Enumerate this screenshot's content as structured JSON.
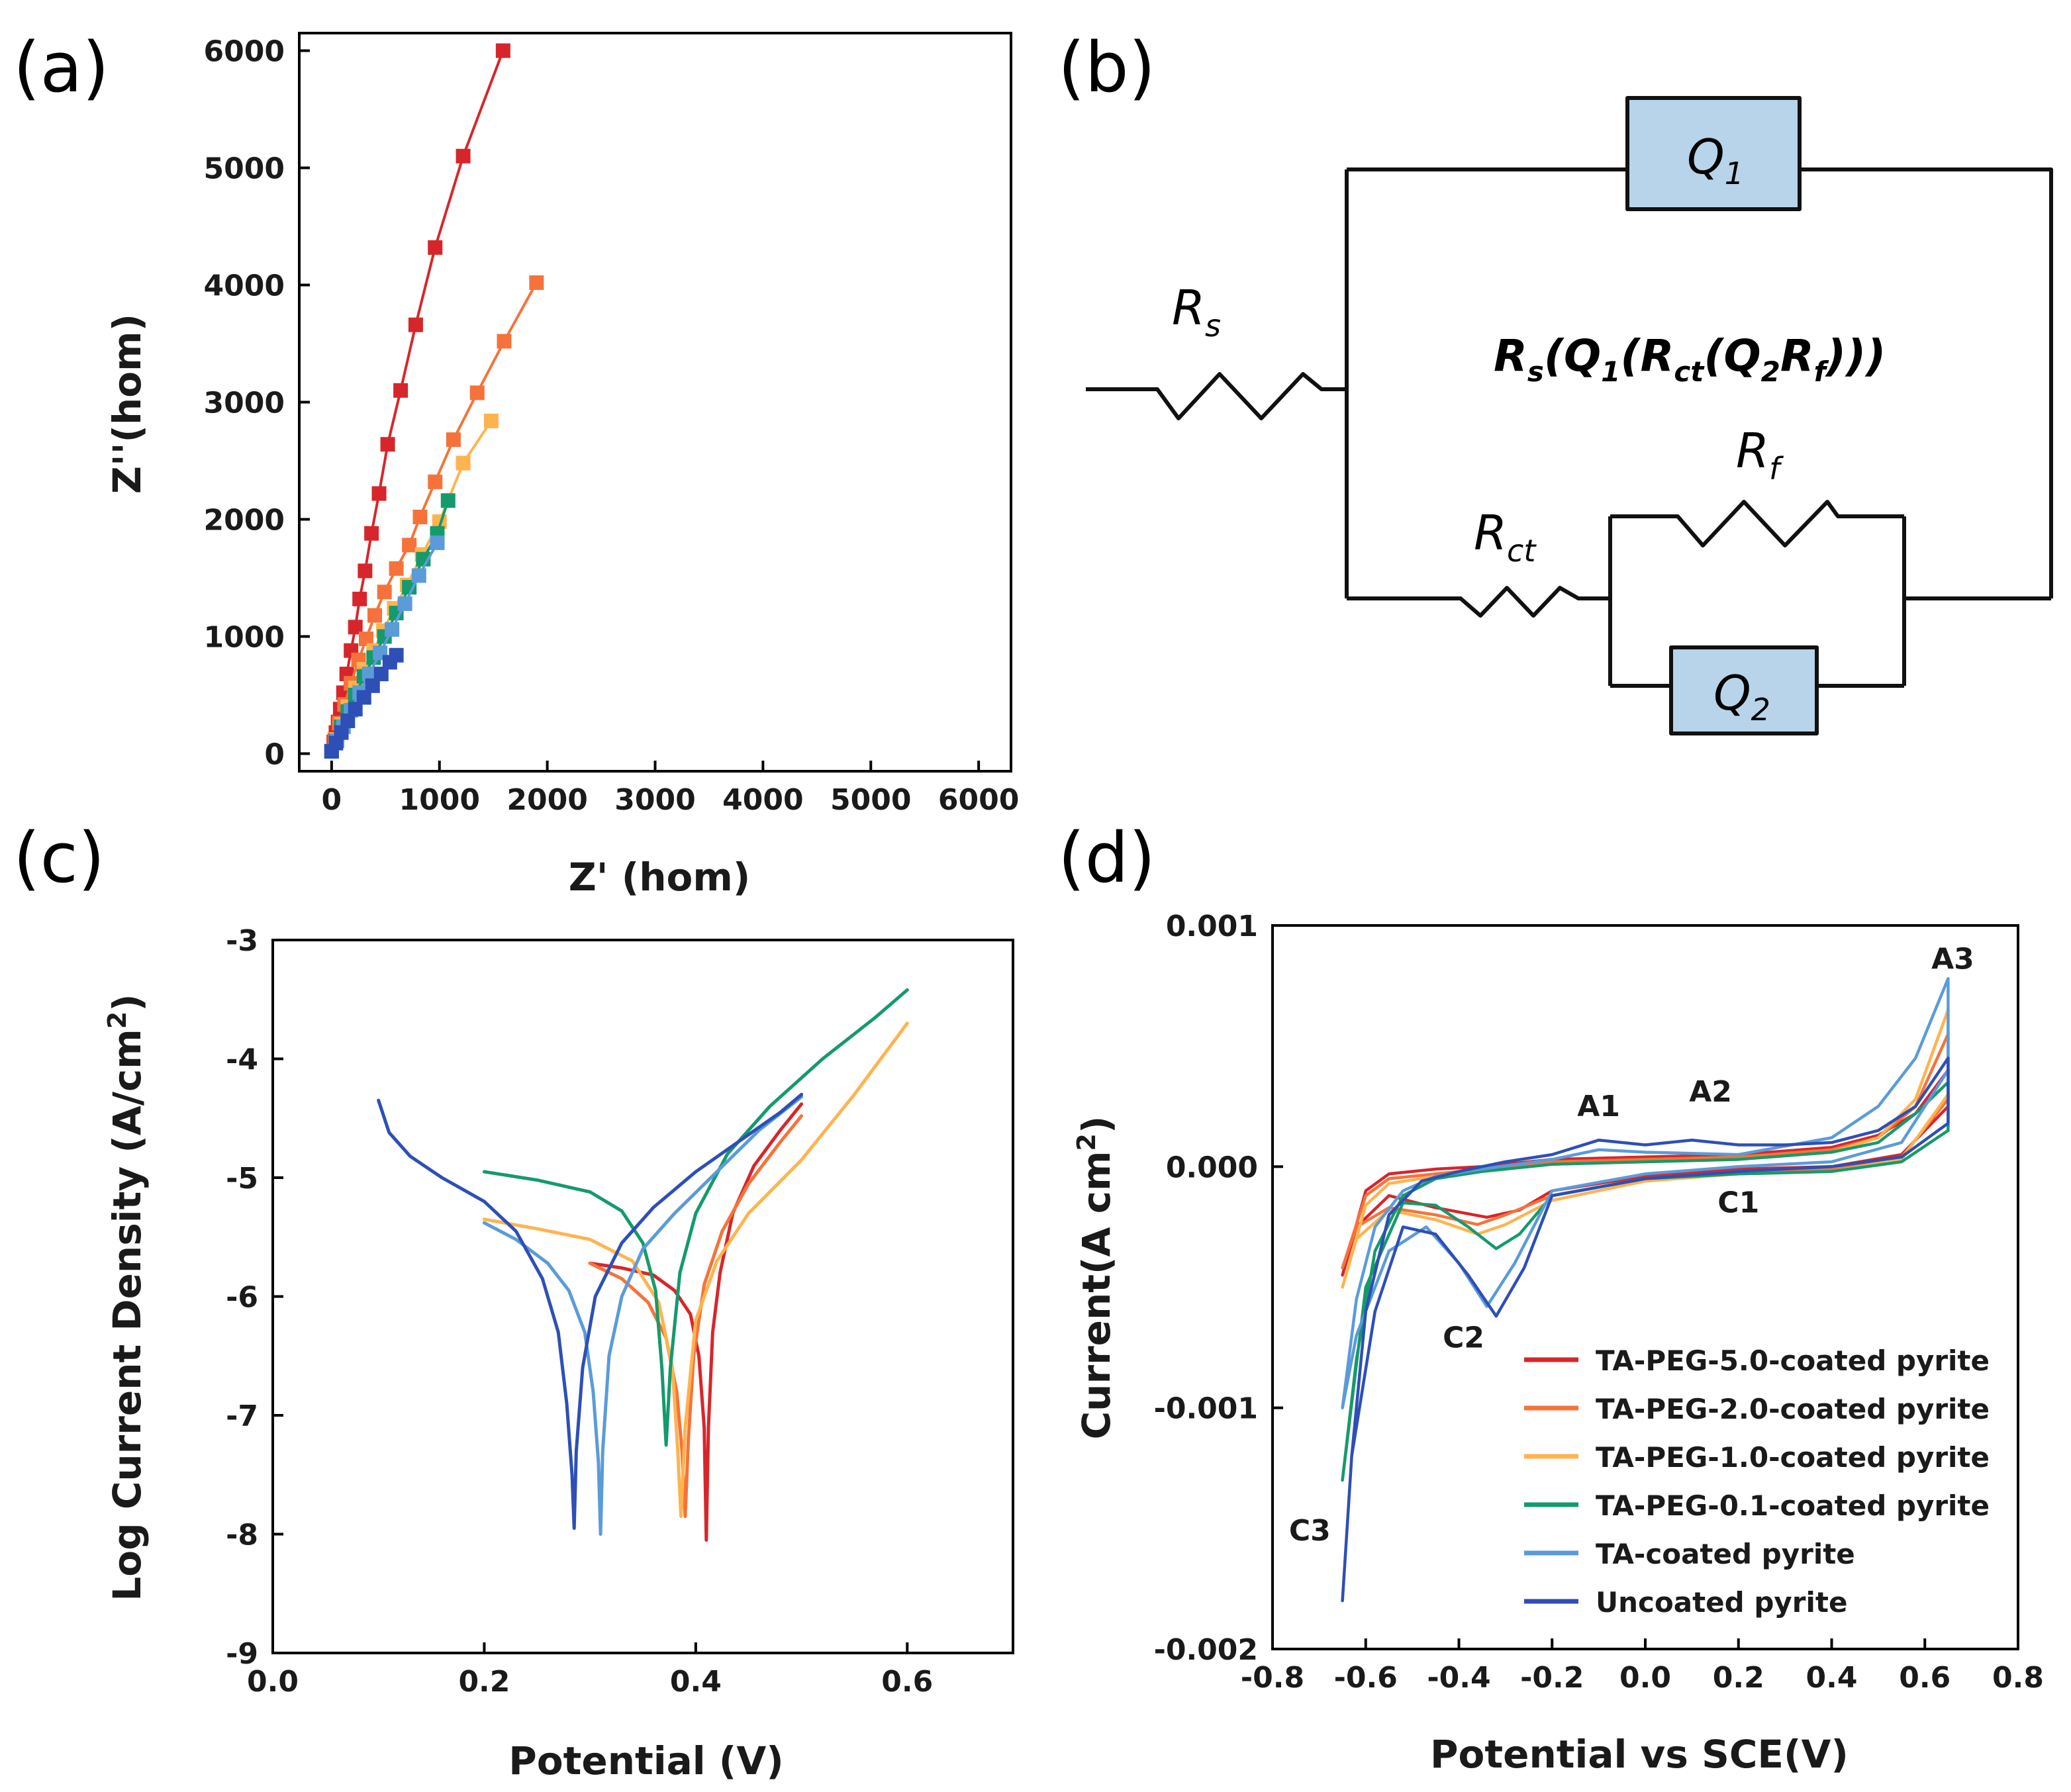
{
  "panels": {
    "a": "(a)",
    "b": "(b)",
    "c": "(c)",
    "d": "(d)"
  },
  "colors": {
    "red": "#d7262b",
    "orange": "#f5733a",
    "light_orange": "#ffb34f",
    "green": "#159a6b",
    "light_blue": "#5b9bd9",
    "blue": "#2e4fb5",
    "box_fill": "#b7d4ea"
  },
  "chart_data": [
    {
      "id": "nyquist",
      "type": "scatter",
      "xlabel": "Z' (hom)",
      "ylabel": "Z''(hom)",
      "xlim": [
        -300,
        6300
      ],
      "ylim": [
        -150,
        6150
      ],
      "xticks": [
        0,
        1000,
        2000,
        3000,
        4000,
        5000,
        6000
      ],
      "yticks": [
        0,
        1000,
        2000,
        3000,
        4000,
        5000,
        6000
      ],
      "series": [
        {
          "name": "TA-PEG-5.0-coated pyrite",
          "color": "#d7262b",
          "x": [
            0,
            20,
            40,
            60,
            80,
            110,
            140,
            180,
            220,
            260,
            310,
            370,
            440,
            520,
            640,
            780,
            960,
            1220,
            1590
          ],
          "y": [
            20,
            100,
            180,
            270,
            380,
            520,
            680,
            880,
            1080,
            1320,
            1560,
            1880,
            2220,
            2640,
            3100,
            3660,
            4320,
            5100,
            6000
          ]
        },
        {
          "name": "TA-PEG-2.0-coated pyrite",
          "color": "#f5733a",
          "x": [
            0,
            30,
            70,
            120,
            180,
            250,
            320,
            400,
            490,
            600,
            720,
            820,
            960,
            1130,
            1350,
            1600,
            1900
          ],
          "y": [
            20,
            120,
            260,
            420,
            600,
            800,
            980,
            1180,
            1380,
            1580,
            1780,
            2020,
            2320,
            2680,
            3080,
            3520,
            4020
          ]
        },
        {
          "name": "TA-PEG-1.0-coated pyrite",
          "color": "#ffb34f",
          "x": [
            0,
            40,
            90,
            150,
            220,
            300,
            390,
            480,
            580,
            700,
            840,
            1000,
            1220,
            1480
          ],
          "y": [
            20,
            120,
            250,
            400,
            560,
            720,
            880,
            1050,
            1240,
            1440,
            1700,
            1980,
            2480,
            2840
          ]
        },
        {
          "name": "TA-PEG-0.1-coated pyrite",
          "color": "#159a6b",
          "x": [
            0,
            40,
            90,
            150,
            220,
            300,
            390,
            490,
            600,
            720,
            850,
            980,
            1080
          ],
          "y": [
            20,
            110,
            230,
            360,
            500,
            660,
            820,
            1000,
            1200,
            1420,
            1660,
            1880,
            2160
          ]
        },
        {
          "name": "TA-coated pyrite",
          "color": "#5b9bd9",
          "x": [
            0,
            50,
            110,
            180,
            260,
            350,
            450,
            560,
            680,
            810,
            980
          ],
          "y": [
            20,
            110,
            230,
            370,
            520,
            680,
            860,
            1060,
            1280,
            1520,
            1800
          ]
        },
        {
          "name": "Uncoated pyrite",
          "color": "#2e4fb5",
          "x": [
            0,
            40,
            90,
            150,
            220,
            300,
            380,
            460,
            540,
            600
          ],
          "y": [
            20,
            90,
            180,
            280,
            380,
            480,
            580,
            680,
            780,
            840
          ]
        }
      ]
    },
    {
      "id": "tafel",
      "type": "line",
      "xlabel": "Potential (V)",
      "ylabel": "Log Current Density (A/cm",
      "ylabel_sup": "2",
      "ylabel_end": ")",
      "xlim": [
        0,
        0.7
      ],
      "ylim": [
        -9,
        -3
      ],
      "xticks": [
        0.0,
        0.2,
        0.4,
        0.6
      ],
      "xtick_labels": [
        "0.0",
        "0.2",
        "0.4",
        "0.6"
      ],
      "yticks": [
        -3,
        -4,
        -5,
        -6,
        -7,
        -8,
        -9
      ],
      "ytick_labels": [
        "-3",
        "-4",
        "-5",
        "-6",
        "-7",
        "-8",
        "-9"
      ],
      "series": [
        {
          "name": "TA-PEG-5.0-coated pyrite",
          "color": "#d7262b",
          "ecorr": 0.41,
          "x": [
            0.3,
            0.33,
            0.36,
            0.38,
            0.395,
            0.403,
            0.408,
            0.41,
            0.412,
            0.416,
            0.423,
            0.435,
            0.455,
            0.48,
            0.5
          ],
          "y": [
            -5.72,
            -5.76,
            -5.82,
            -5.95,
            -6.15,
            -6.5,
            -7.1,
            -8.05,
            -7.1,
            -6.3,
            -5.8,
            -5.3,
            -4.9,
            -4.6,
            -4.38
          ]
        },
        {
          "name": "TA-PEG-2.0-coated pyrite",
          "color": "#f5733a",
          "ecorr": 0.39,
          "x": [
            0.3,
            0.33,
            0.355,
            0.372,
            0.382,
            0.387,
            0.39,
            0.393,
            0.398,
            0.408,
            0.425,
            0.45,
            0.48,
            0.5
          ],
          "y": [
            -5.72,
            -5.85,
            -6.05,
            -6.35,
            -6.8,
            -7.3,
            -7.85,
            -7.2,
            -6.5,
            -5.9,
            -5.45,
            -5.05,
            -4.7,
            -4.48
          ]
        },
        {
          "name": "TA-PEG-1.0-coated pyrite",
          "color": "#ffb34f",
          "ecorr": 0.385,
          "x": [
            0.2,
            0.25,
            0.3,
            0.34,
            0.365,
            0.378,
            0.383,
            0.386,
            0.39,
            0.4,
            0.42,
            0.45,
            0.5,
            0.55,
            0.6
          ],
          "y": [
            -5.35,
            -5.43,
            -5.52,
            -5.7,
            -6.05,
            -6.6,
            -7.3,
            -7.85,
            -7.1,
            -6.2,
            -5.7,
            -5.3,
            -4.85,
            -4.3,
            -3.7
          ]
        },
        {
          "name": "TA-PEG-0.1-coated pyrite",
          "color": "#159a6b",
          "ecorr": 0.372,
          "x": [
            0.2,
            0.25,
            0.3,
            0.33,
            0.35,
            0.362,
            0.368,
            0.372,
            0.376,
            0.385,
            0.4,
            0.43,
            0.47,
            0.52,
            0.57,
            0.6
          ],
          "y": [
            -4.95,
            -5.02,
            -5.12,
            -5.28,
            -5.55,
            -5.95,
            -6.6,
            -7.25,
            -6.6,
            -5.8,
            -5.3,
            -4.8,
            -4.4,
            -4.0,
            -3.65,
            -3.42
          ]
        },
        {
          "name": "TA-coated pyrite",
          "color": "#5b9bd9",
          "ecorr": 0.31,
          "x": [
            0.2,
            0.23,
            0.26,
            0.28,
            0.295,
            0.303,
            0.308,
            0.31,
            0.312,
            0.318,
            0.33,
            0.35,
            0.38,
            0.42,
            0.46,
            0.5
          ],
          "y": [
            -5.38,
            -5.52,
            -5.72,
            -5.95,
            -6.3,
            -6.8,
            -7.4,
            -8.0,
            -7.3,
            -6.5,
            -6.0,
            -5.6,
            -5.3,
            -4.95,
            -4.6,
            -4.32
          ]
        },
        {
          "name": "Uncoated pyrite",
          "color": "#2e4fb5",
          "ecorr": 0.285,
          "x": [
            0.1,
            0.11,
            0.13,
            0.16,
            0.2,
            0.23,
            0.255,
            0.27,
            0.278,
            0.283,
            0.285,
            0.287,
            0.293,
            0.305,
            0.33,
            0.36,
            0.4,
            0.44,
            0.48,
            0.5
          ],
          "y": [
            -4.35,
            -4.62,
            -4.82,
            -5.0,
            -5.2,
            -5.45,
            -5.85,
            -6.3,
            -6.9,
            -7.5,
            -7.95,
            -7.3,
            -6.6,
            -6.0,
            -5.55,
            -5.25,
            -4.95,
            -4.7,
            -4.45,
            -4.3
          ]
        }
      ]
    },
    {
      "id": "cv",
      "type": "line",
      "xlabel": "Potential vs SCE(V)",
      "ylabel": "Current(A cm",
      "ylabel_sup": "2",
      "ylabel_end": ")",
      "xlim": [
        -0.8,
        0.8
      ],
      "ylim": [
        -0.002,
        0.001
      ],
      "xticks": [
        -0.8,
        -0.6,
        -0.4,
        -0.2,
        0.0,
        0.2,
        0.4,
        0.6,
        0.8
      ],
      "xtick_labels": [
        "-0.8",
        "-0.6",
        "-0.4",
        "-0.2",
        "0.0",
        "0.2",
        "0.4",
        "0.6",
        "0.8"
      ],
      "yticks": [
        0.001,
        0.0,
        -0.001,
        -0.002
      ],
      "ytick_labels": [
        "0.001",
        "0.000",
        "-0.001",
        "-0.002"
      ],
      "annotations": [
        {
          "text": "A1",
          "x": -0.1,
          "y": 0.00021
        },
        {
          "text": "A2",
          "x": 0.14,
          "y": 0.00027
        },
        {
          "text": "A3",
          "x": 0.66,
          "y": 0.00082
        },
        {
          "text": "C1",
          "x": 0.2,
          "y": -0.00019
        },
        {
          "text": "C2",
          "x": -0.39,
          "y": -0.00075
        },
        {
          "text": "C3",
          "x": -0.72,
          "y": -0.00155
        }
      ],
      "series": [
        {
          "name": "TA-PEG-5.0-coated pyrite",
          "color": "#d7262b",
          "x": [
            -0.65,
            -0.6,
            -0.55,
            -0.45,
            -0.35,
            -0.2,
            0.0,
            0.2,
            0.4,
            0.5,
            0.58,
            0.65,
            0.65,
            0.55,
            0.4,
            0.2,
            0.0,
            -0.2,
            -0.27,
            -0.34,
            -0.45,
            -0.55,
            -0.62,
            -0.65
          ],
          "y": [
            -0.00045,
            -0.0001,
            -3e-05,
            -1e-05,
            0.0,
            3e-05,
            4e-05,
            5e-05,
            8e-05,
            0.00013,
            0.00022,
            0.0004,
            0.00025,
            5e-05,
            0.0,
            -1e-05,
            -4e-05,
            -0.0001,
            -0.00018,
            -0.00021,
            -0.00017,
            -0.00012,
            -0.00025,
            -0.00045
          ]
        },
        {
          "name": "TA-PEG-2.0-coated pyrite",
          "color": "#f5733a",
          "x": [
            -0.65,
            -0.6,
            -0.55,
            -0.45,
            -0.35,
            -0.2,
            0.0,
            0.2,
            0.4,
            0.5,
            0.58,
            0.65,
            0.65,
            0.55,
            0.4,
            0.2,
            0.0,
            -0.2,
            -0.3,
            -0.36,
            -0.45,
            -0.55,
            -0.62,
            -0.65
          ],
          "y": [
            -0.00042,
            -0.00012,
            -5e-05,
            -3e-05,
            -1e-05,
            2e-05,
            3e-05,
            4e-05,
            7e-05,
            0.00012,
            0.00025,
            0.00055,
            0.00028,
            4e-05,
            -1e-05,
            -2e-05,
            -5e-05,
            -0.00012,
            -0.0002,
            -0.00024,
            -0.0002,
            -0.00017,
            -0.00025,
            -0.00042
          ]
        },
        {
          "name": "TA-PEG-1.0-coated pyrite",
          "color": "#ffb34f",
          "x": [
            -0.65,
            -0.6,
            -0.55,
            -0.45,
            -0.35,
            -0.2,
            0.0,
            0.2,
            0.4,
            0.5,
            0.58,
            0.65,
            0.65,
            0.55,
            0.4,
            0.2,
            0.0,
            -0.2,
            -0.3,
            -0.36,
            -0.45,
            -0.55,
            -0.62,
            -0.65
          ],
          "y": [
            -0.0005,
            -0.00016,
            -7e-05,
            -4e-05,
            -2e-05,
            1e-05,
            2e-05,
            3e-05,
            6e-05,
            0.00012,
            0.00028,
            0.00065,
            0.0003,
            3e-05,
            -2e-05,
            -3e-05,
            -6e-05,
            -0.00014,
            -0.00024,
            -0.00028,
            -0.00022,
            -0.00018,
            -0.0003,
            -0.0005
          ]
        },
        {
          "name": "TA-PEG-0.1-coated pyrite",
          "color": "#159a6b",
          "x": [
            -0.65,
            -0.62,
            -0.58,
            -0.52,
            -0.45,
            -0.35,
            -0.2,
            0.0,
            0.2,
            0.4,
            0.5,
            0.58,
            0.65,
            0.65,
            0.55,
            0.4,
            0.2,
            0.0,
            -0.2,
            -0.27,
            -0.32,
            -0.38,
            -0.45,
            -0.52,
            -0.6,
            -0.65
          ],
          "y": [
            -0.0013,
            -0.0008,
            -0.00035,
            -0.00012,
            -5e-05,
            -2e-05,
            1e-05,
            2e-05,
            3e-05,
            6e-05,
            0.0001,
            0.00022,
            0.00035,
            0.00015,
            2e-05,
            -2e-05,
            -3e-05,
            -5e-05,
            -0.00012,
            -0.00028,
            -0.00034,
            -0.00025,
            -0.00016,
            -0.00015,
            -0.0005,
            -0.0013
          ]
        },
        {
          "name": "TA-coated pyrite",
          "color": "#5b9bd9",
          "x": [
            -0.65,
            -0.62,
            -0.58,
            -0.52,
            -0.45,
            -0.35,
            -0.2,
            -0.1,
            0.0,
            0.2,
            0.4,
            0.5,
            0.58,
            0.65,
            0.65,
            0.55,
            0.4,
            0.2,
            0.0,
            -0.2,
            -0.28,
            -0.34,
            -0.4,
            -0.47,
            -0.55,
            -0.62,
            -0.65
          ],
          "y": [
            -0.001,
            -0.00055,
            -0.00025,
            -0.0001,
            -4e-05,
            -1e-05,
            3e-05,
            7e-05,
            6e-05,
            5e-05,
            0.00012,
            0.00025,
            0.00045,
            0.00078,
            0.0004,
            0.0001,
            2e-05,
            0.0,
            -3e-05,
            -0.0001,
            -0.0004,
            -0.00058,
            -0.0004,
            -0.00025,
            -0.00035,
            -0.0007,
            -0.001
          ]
        },
        {
          "name": "Uncoated pyrite",
          "color": "#2e4fb5",
          "x": [
            -0.65,
            -0.63,
            -0.6,
            -0.55,
            -0.48,
            -0.4,
            -0.3,
            -0.2,
            -0.1,
            0.0,
            0.1,
            0.2,
            0.3,
            0.4,
            0.5,
            0.58,
            0.65,
            0.65,
            0.55,
            0.4,
            0.2,
            0.0,
            -0.2,
            -0.26,
            -0.32,
            -0.38,
            -0.45,
            -0.52,
            -0.58,
            -0.63,
            -0.65
          ],
          "y": [
            -0.0018,
            -0.0012,
            -0.0006,
            -0.0002,
            -6e-05,
            -2e-05,
            2e-05,
            5e-05,
            0.00011,
            9e-05,
            0.00011,
            9e-05,
            9e-05,
            0.0001,
            0.00015,
            0.00025,
            0.00045,
            0.00018,
            4e-05,
            0.0,
            -2e-05,
            -5e-05,
            -0.00012,
            -0.00042,
            -0.00062,
            -0.00045,
            -0.00028,
            -0.00025,
            -0.0006,
            -0.0012,
            -0.0018
          ]
        }
      ]
    }
  ],
  "legend": {
    "entries": [
      {
        "label": "TA-PEG-5.0-coated pyrite",
        "color": "#d7262b"
      },
      {
        "label": "TA-PEG-2.0-coated pyrite",
        "color": "#f5733a"
      },
      {
        "label": "TA-PEG-1.0-coated pyrite",
        "color": "#ffb34f"
      },
      {
        "label": "TA-PEG-0.1-coated pyrite",
        "color": "#159a6b"
      },
      {
        "label": "TA-coated pyrite",
        "color": "#5b9bd9"
      },
      {
        "label": "Uncoated pyrite",
        "color": "#2e4fb5"
      }
    ]
  },
  "circuit": {
    "rs_main": "R",
    "rs_sub": "s",
    "q1_main": "Q",
    "q1_sub": "1",
    "q2_main": "Q",
    "q2_sub": "2",
    "rct_main": "R",
    "rct_sub": "ct",
    "rf_main": "R",
    "rf_sub": "f",
    "formula": {
      "p1": "R",
      "s1": "s",
      "p2": "(Q",
      "s2": "1",
      "p3": "(R",
      "s3": "ct",
      "p4": "(Q",
      "s4": "2",
      "p5": "R",
      "s5": "f",
      "p6": ")))"
    }
  }
}
